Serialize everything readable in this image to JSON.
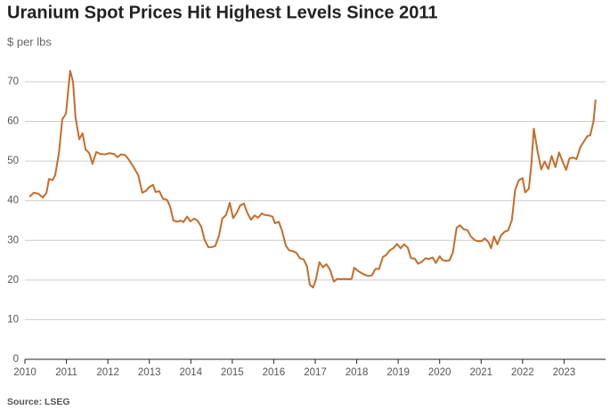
{
  "chart_data": {
    "type": "line",
    "title": "Uranium Spot Prices Hit Highest Levels Since 2011",
    "subtitle": "$ per lbs",
    "source": "Source: LSEG",
    "xlim": [
      2010,
      2024
    ],
    "xticks": [
      2010,
      2011,
      2012,
      2013,
      2014,
      2015,
      2016,
      2017,
      2018,
      2019,
      2020,
      2021,
      2022,
      2023
    ],
    "ylim": [
      0,
      75
    ],
    "yticks": [
      0,
      10,
      20,
      30,
      40,
      50,
      60,
      70
    ],
    "grid": true,
    "x": [
      2010.11,
      2010.21,
      2010.32,
      2010.43,
      2010.52,
      2010.58,
      2010.67,
      2010.73,
      2010.82,
      2010.9,
      2010.99,
      2011.09,
      2011.16,
      2011.22,
      2011.31,
      2011.39,
      2011.46,
      2011.55,
      2011.63,
      2011.72,
      2011.82,
      2011.93,
      2012.04,
      2012.15,
      2012.23,
      2012.32,
      2012.42,
      2012.51,
      2012.62,
      2012.73,
      2012.83,
      2012.92,
      2013.0,
      2013.09,
      2013.15,
      2013.24,
      2013.33,
      2013.43,
      2013.5,
      2013.58,
      2013.67,
      2013.76,
      2013.82,
      2013.91,
      2013.99,
      2014.08,
      2014.16,
      2014.25,
      2014.33,
      2014.42,
      2014.51,
      2014.59,
      2014.68,
      2014.76,
      2014.85,
      2014.94,
      2015.02,
      2015.11,
      2015.19,
      2015.28,
      2015.36,
      2015.45,
      2015.54,
      2015.62,
      2015.71,
      2015.79,
      2015.88,
      2015.97,
      2016.03,
      2016.12,
      2016.2,
      2016.29,
      2016.37,
      2016.46,
      2016.55,
      2016.63,
      2016.72,
      2016.8,
      2016.87,
      2016.95,
      2017.02,
      2017.1,
      2017.19,
      2017.27,
      2017.36,
      2017.45,
      2017.53,
      2017.62,
      2017.7,
      2017.79,
      2017.88,
      2017.94,
      2018.03,
      2018.11,
      2018.2,
      2018.28,
      2018.37,
      2018.45,
      2018.54,
      2018.63,
      2018.71,
      2018.8,
      2018.88,
      2018.97,
      2019.06,
      2019.14,
      2019.23,
      2019.31,
      2019.4,
      2019.48,
      2019.57,
      2019.66,
      2019.74,
      2019.83,
      2019.91,
      2020.0,
      2020.06,
      2020.15,
      2020.24,
      2020.32,
      2020.41,
      2020.49,
      2020.58,
      2020.67,
      2020.75,
      2020.84,
      2020.92,
      2021.01,
      2021.09,
      2021.18,
      2021.24,
      2021.31,
      2021.39,
      2021.48,
      2021.57,
      2021.65,
      2021.74,
      2021.82,
      2021.91,
      2022.0,
      2022.06,
      2022.15,
      2022.21,
      2022.27,
      2022.36,
      2022.45,
      2022.53,
      2022.62,
      2022.7,
      2022.79,
      2022.88,
      2022.96,
      2023.05,
      2023.13,
      2023.22,
      2023.3,
      2023.39,
      2023.48,
      2023.56,
      2023.63,
      2023.71,
      2023.76
    ],
    "series": [
      {
        "color": "#c46d2b",
        "values": [
          41,
          42,
          41.8,
          40.8,
          42,
          45.5,
          45.2,
          46.5,
          52,
          60.5,
          62,
          72.8,
          70,
          61,
          55.5,
          57,
          53,
          52,
          49.3,
          52.3,
          51.8,
          51.7,
          52,
          51.8,
          51,
          51.7,
          51.5,
          50.3,
          48.5,
          46.5,
          42,
          42.5,
          43.5,
          44,
          42.2,
          42.4,
          40.5,
          40.2,
          38.5,
          35,
          34.7,
          35,
          34.6,
          36,
          34.8,
          35.5,
          35,
          33.5,
          30.2,
          28.3,
          28.3,
          28.6,
          31.2,
          35.5,
          36.4,
          39.5,
          35.6,
          37,
          38.8,
          39.3,
          37,
          35.2,
          36.3,
          35.7,
          36.8,
          36.4,
          36.3,
          36,
          34.3,
          34.7,
          32.4,
          28.7,
          27.5,
          27.3,
          26.8,
          25.5,
          25.2,
          23.5,
          18.8,
          18.1,
          20.3,
          24.5,
          23.2,
          24,
          22.5,
          19.6,
          20.3,
          20.2,
          20.3,
          20.2,
          20.3,
          23.1,
          22.3,
          21.8,
          21.3,
          21,
          21.2,
          22.8,
          22.8,
          25.8,
          26.3,
          27.5,
          28,
          29.1,
          28,
          29,
          28.2,
          25.5,
          25.4,
          24.1,
          24.6,
          25.5,
          25.3,
          25.7,
          24.3,
          26,
          25.1,
          24.8,
          25,
          27,
          33.2,
          33.8,
          32.8,
          32.6,
          31,
          30.1,
          29.8,
          29.8,
          30.5,
          29.5,
          28,
          31,
          29,
          31.3,
          32.2,
          32.5,
          35,
          42.7,
          45.2,
          45.7,
          42.1,
          43,
          49,
          58.2,
          52.5,
          47.9,
          49.9,
          48,
          51.3,
          48.5,
          52.2,
          50,
          47.8,
          50.7,
          50.9,
          50.5,
          53.5,
          55,
          56.3,
          56.5,
          60,
          65.5
        ]
      }
    ]
  }
}
